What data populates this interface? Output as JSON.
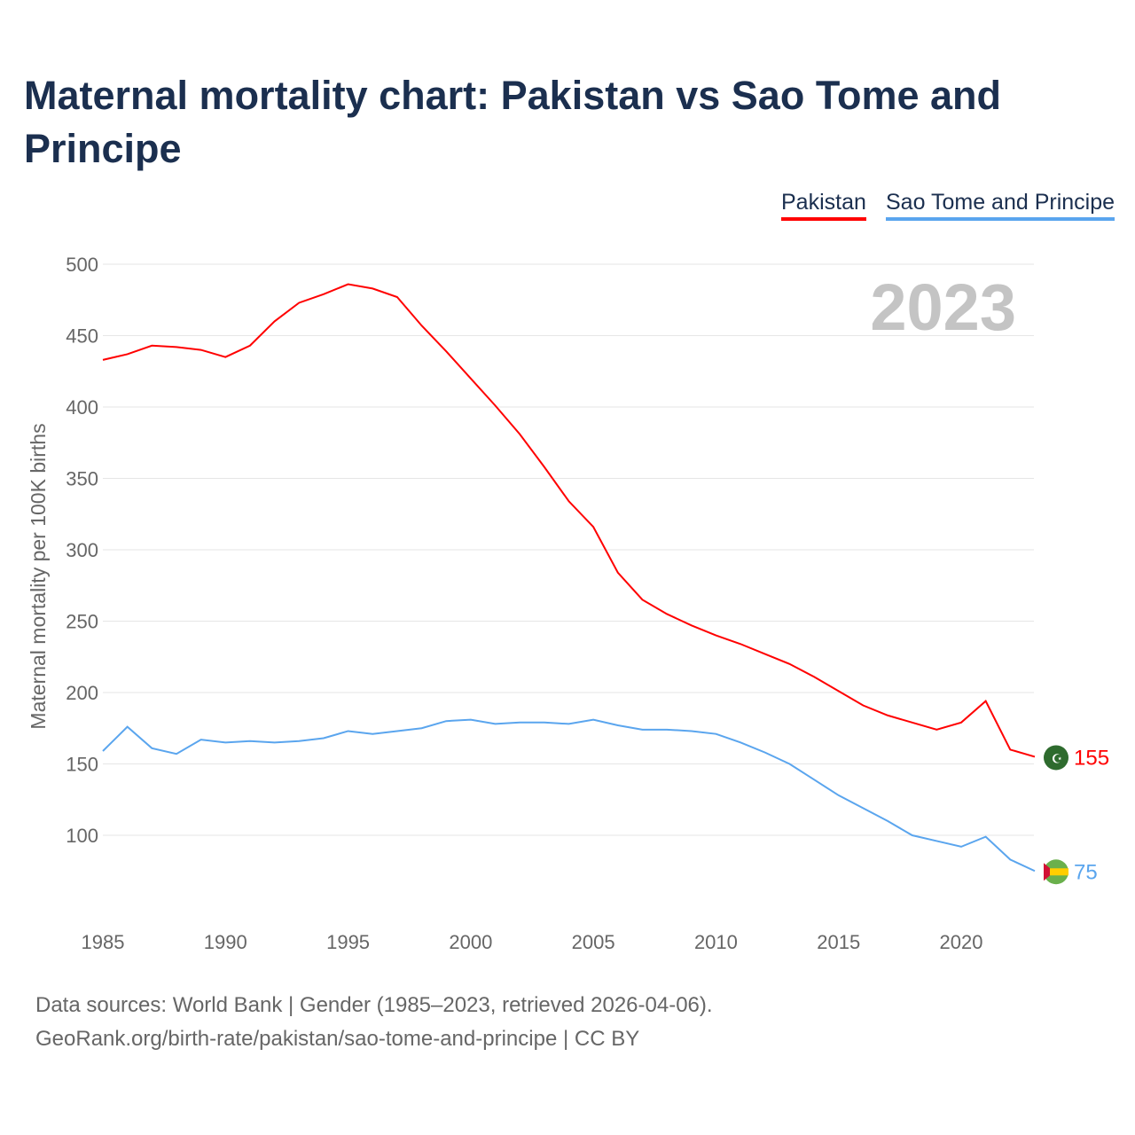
{
  "title": "Maternal mortality chart: Pakistan vs Sao Tome and Principe",
  "footer": {
    "line1": "Data sources: World Bank | Gender (1985–2023, retrieved 2026-04-06).",
    "line2": "GeoRank.org/birth-rate/pakistan/sao-tome-and-principe | CC BY"
  },
  "chart_data": {
    "type": "line",
    "title": "Maternal mortality chart: Pakistan vs Sao Tome and Principe",
    "ylabel": "Maternal mortality per 100K births",
    "xlabel": "",
    "year_label": "2023",
    "ylim": [
      50,
      500
    ],
    "xlim": [
      1985,
      2023
    ],
    "yticks": [
      100,
      150,
      200,
      250,
      300,
      350,
      400,
      450,
      500
    ],
    "xticks": [
      1985,
      1990,
      1995,
      2000,
      2005,
      2010,
      2015,
      2020
    ],
    "legend": "top-right",
    "x": [
      1985,
      1986,
      1987,
      1988,
      1989,
      1990,
      1991,
      1992,
      1993,
      1994,
      1995,
      1996,
      1997,
      1998,
      1999,
      2000,
      2001,
      2002,
      2003,
      2004,
      2005,
      2006,
      2007,
      2008,
      2009,
      2010,
      2011,
      2012,
      2013,
      2014,
      2015,
      2016,
      2017,
      2018,
      2019,
      2020,
      2021,
      2022,
      2023
    ],
    "series": [
      {
        "name": "Pakistan",
        "color": "#ff0000",
        "end_label": "155",
        "values": [
          433,
          437,
          443,
          442,
          440,
          435,
          443,
          460,
          473,
          479,
          486,
          483,
          477,
          457,
          439,
          420,
          401,
          381,
          358,
          334,
          316,
          284,
          265,
          255,
          247,
          240,
          234,
          227,
          220,
          211,
          201,
          191,
          184,
          179,
          174,
          179,
          194,
          160,
          155
        ]
      },
      {
        "name": "Sao Tome and Principe",
        "color": "#5aa5ee",
        "end_label": "75",
        "values": [
          159,
          176,
          161,
          157,
          167,
          165,
          166,
          165,
          166,
          168,
          173,
          171,
          173,
          175,
          180,
          181,
          178,
          179,
          179,
          178,
          181,
          177,
          174,
          174,
          173,
          171,
          165,
          158,
          150,
          139,
          128,
          119,
          110,
          100,
          96,
          92,
          99,
          83,
          75
        ]
      }
    ]
  }
}
